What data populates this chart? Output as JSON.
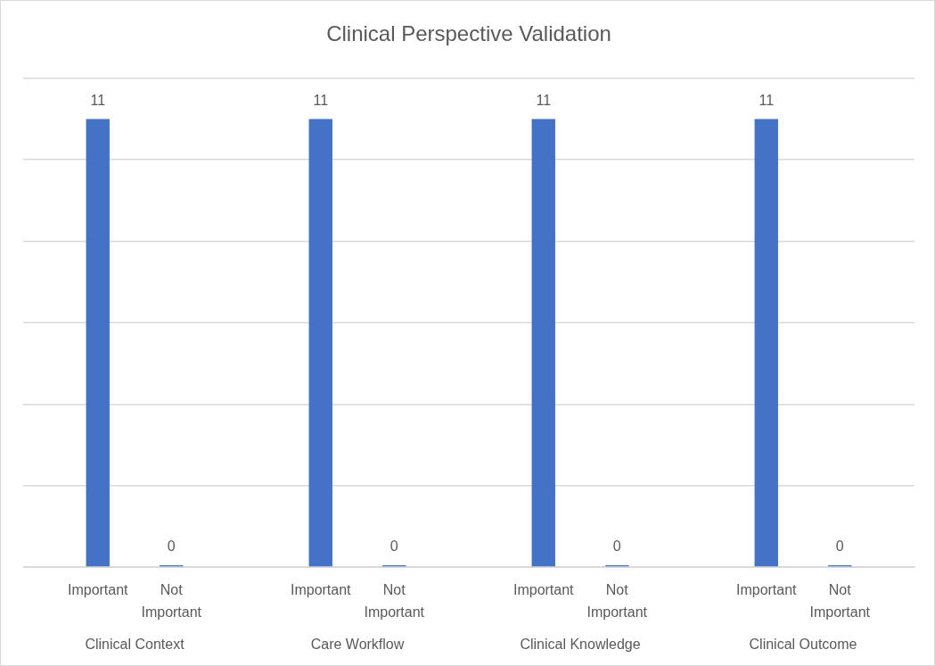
{
  "chart_data": {
    "type": "bar",
    "title": "Clinical Perspective Validation",
    "categories": [
      "Clinical Context",
      "Care Workflow",
      "Clinical Knowledge",
      "Clinical Outcome"
    ],
    "series": [
      {
        "name": "Important",
        "color": "#4472c4",
        "values": [
          11,
          11,
          11,
          11
        ]
      },
      {
        "name": "Not Important",
        "color": "#4472c4",
        "values": [
          0,
          0,
          0,
          0
        ]
      }
    ],
    "ylim": [
      0,
      12
    ],
    "yticks": [
      {
        "value": 0,
        "label": null
      },
      {
        "value": 2,
        "label": null
      },
      {
        "value": 4,
        "label": null
      },
      {
        "value": 6,
        "label": null
      },
      {
        "value": 8,
        "label": null
      },
      {
        "value": 10,
        "label": null
      },
      {
        "value": 12,
        "label": null
      }
    ],
    "grid": "y",
    "legend": false,
    "tick_labels": "x",
    "data_labels": true
  }
}
